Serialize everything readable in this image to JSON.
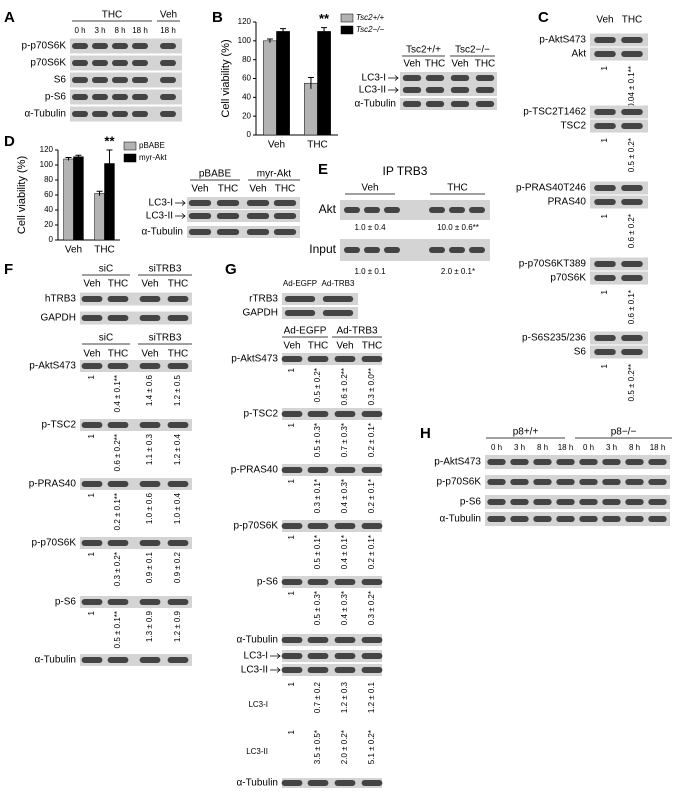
{
  "panels": {
    "A": {
      "letter": "A",
      "groups": [
        "THC",
        "Veh"
      ],
      "lanes": [
        "0 h",
        "3 h",
        "8 h",
        "18 h",
        "18 h"
      ],
      "rows": [
        "p-p70S6K",
        "p70S6K",
        "S6",
        "p-S6",
        "α-Tubulin"
      ]
    },
    "B": {
      "letter": "B",
      "groups": [
        "Tsc2+/+",
        "Tsc2−/−"
      ],
      "lanes": [
        "Veh",
        "THC",
        "Veh",
        "THC"
      ],
      "rows": [
        "LC3-I",
        "LC3-II",
        "α-Tubulin"
      ]
    },
    "C": {
      "letter": "C",
      "lanes": [
        "Veh",
        "THC"
      ],
      "blots": [
        {
          "rows": [
            "p-AktS473",
            "Akt"
          ],
          "quant": [
            "1",
            "0.04 ± 0.1**"
          ]
        },
        {
          "rows": [
            "p-TSC2T1462",
            "TSC2"
          ],
          "quant": [
            "1",
            "0.5 ± 0.2*"
          ]
        },
        {
          "rows": [
            "p-PRAS40T246",
            "PRAS40"
          ],
          "quant": [
            "1",
            "0.6 ± 0.2*"
          ]
        },
        {
          "rows": [
            "p-p70S6KT389",
            "p70S6K"
          ],
          "quant": [
            "1",
            "0.6 ± 0.1*"
          ]
        },
        {
          "rows": [
            "p-S6S235/236",
            "S6"
          ],
          "quant": [
            "1",
            "0.5 ± 0.2**"
          ]
        }
      ]
    },
    "D": {
      "letter": "D",
      "groups": [
        "pBABE",
        "myr-Akt"
      ],
      "lanes": [
        "Veh",
        "THC",
        "Veh",
        "THC"
      ],
      "rows": [
        "LC3-I",
        "LC3-II",
        "α-Tubulin"
      ]
    },
    "E": {
      "letter": "E",
      "title": "IP TRB3",
      "groups": [
        "Veh",
        "THC"
      ],
      "rows": [
        {
          "label": "Akt",
          "quant": [
            "1.0 ± 0.4",
            "10.0 ± 0.6**"
          ]
        },
        {
          "label": "Input",
          "quant": [
            "1.0 ± 0.1",
            "2.0 ± 0.1*"
          ]
        }
      ]
    },
    "F": {
      "letter": "F",
      "top": {
        "groups": [
          "siC",
          "siTRB3"
        ],
        "lanes": [
          "Veh",
          "THC",
          "Veh",
          "THC"
        ],
        "rows": [
          "hTRB3",
          "GAPDH"
        ]
      },
      "main": {
        "groups": [
          "siC",
          "siTRB3"
        ],
        "lanes": [
          "Veh",
          "THC",
          "Veh",
          "THC"
        ],
        "blots": [
          {
            "row": "p-AktS473",
            "quant": [
              "1",
              "0.4 ± 0.1**",
              "1.4 ± 0.6",
              "1.2 ± 0.5"
            ]
          },
          {
            "row": "p-TSC2",
            "quant": [
              "1",
              "0.6 ± 0.2**",
              "1.1 ± 0.3",
              "1.2 ± 0.4"
            ]
          },
          {
            "row": "p-PRAS40",
            "quant": [
              "1",
              "0.2 ± 0.1**",
              "1.0 ± 0.6",
              "1.0 ± 0.4"
            ]
          },
          {
            "row": "p-p70S6K",
            "quant": [
              "1",
              "0.3 ± 0.2*",
              "0.9 ± 0.1",
              "0.9 ± 0.2"
            ]
          },
          {
            "row": "p-S6",
            "quant": [
              "1",
              "0.5 ± 0.1**",
              "1.3 ± 0.9",
              "1.2 ± 0.9"
            ]
          }
        ],
        "loading": "α-Tubulin"
      }
    },
    "G": {
      "letter": "G",
      "top": {
        "lanes": [
          "Ad-EGFP",
          "Ad-TRB3"
        ],
        "rows": [
          "rTRB3",
          "GAPDH"
        ]
      },
      "main": {
        "groups": [
          "Ad-EGFP",
          "Ad-TRB3"
        ],
        "lanes": [
          "Veh",
          "THC",
          "Veh",
          "THC"
        ],
        "blots": [
          {
            "row": "p-AktS473",
            "quant": [
              "1",
              "0.5 ± 0.2*",
              "0.6 ± 0.2**",
              "0.3 ± 0.0**"
            ]
          },
          {
            "row": "p-TSC2",
            "quant": [
              "1",
              "0.5 ± 0.3*",
              "0.7 ± 0.3*",
              "0.2 ± 0.1*"
            ]
          },
          {
            "row": "p-PRAS40",
            "quant": [
              "1",
              "0.3 ± 0.1*",
              "0.4 ± 0.3*",
              "0.2 ± 0.1*"
            ]
          },
          {
            "row": "p-p70S6K",
            "quant": [
              "1",
              "0.5 ± 0.1*",
              "0.4 ± 0.1*",
              "0.2 ± 0.1*"
            ]
          },
          {
            "row": "p-S6",
            "quant": [
              "1",
              "0.5 ± 0.3*",
              "0.4 ± 0.3*",
              "0.3 ± 0.2*"
            ]
          }
        ],
        "loading": "α-Tubulin",
        "lc3_rows": [
          "LC3-I",
          "LC3-II"
        ],
        "lc3_quant": [
          {
            "label": "LC3-I",
            "quant": [
              "1",
              "0.7 ± 0.2",
              "1.2 ± 0.3",
              "1.2 ± 0.1"
            ]
          },
          {
            "label": "LC3-II",
            "quant": [
              "1",
              "3.5 ± 0.5*",
              "2.0 ± 0.2*",
              "5.1 ± 0.2*"
            ]
          }
        ],
        "loading2": "α-Tubulin"
      }
    },
    "H": {
      "letter": "H",
      "groups": [
        "p8+/+",
        "p8−/−"
      ],
      "lanes": [
        "0 h",
        "3 h",
        "8 h",
        "18 h",
        "0 h",
        "3 h",
        "8 h",
        "18 h"
      ],
      "rows": [
        "p-AktS473",
        "p-p70S6K",
        "p-S6",
        "α-Tubulin"
      ]
    }
  },
  "chart_data": [
    {
      "type": "bar",
      "y_label": "Cell viability (%)",
      "categories": [
        "Veh",
        "THC"
      ],
      "series": [
        {
          "name": "Tsc2+/+",
          "color": "#b3b3b3",
          "values": [
            100,
            55
          ],
          "errors": [
            2,
            6
          ]
        },
        {
          "name": "Tsc2−/−",
          "color": "#000000",
          "values": [
            110,
            110
          ],
          "errors": [
            3,
            4
          ]
        }
      ],
      "ylim": [
        0,
        120
      ],
      "yticks": [
        0,
        20,
        40,
        60,
        80,
        100,
        120
      ],
      "annotation": "**"
    },
    {
      "type": "bar",
      "y_label": "Cell viability (%)",
      "categories": [
        "Veh",
        "THC"
      ],
      "series": [
        {
          "name": "pBABE",
          "color": "#b3b3b3",
          "values": [
            108,
            62
          ],
          "errors": [
            2,
            3
          ]
        },
        {
          "name": "myr-Akt",
          "color": "#000000",
          "values": [
            111,
            102
          ],
          "errors": [
            2,
            18
          ]
        }
      ],
      "ylim": [
        0,
        120
      ],
      "yticks": [
        0,
        20,
        40,
        60,
        80,
        100,
        120
      ],
      "annotation": "**"
    }
  ]
}
